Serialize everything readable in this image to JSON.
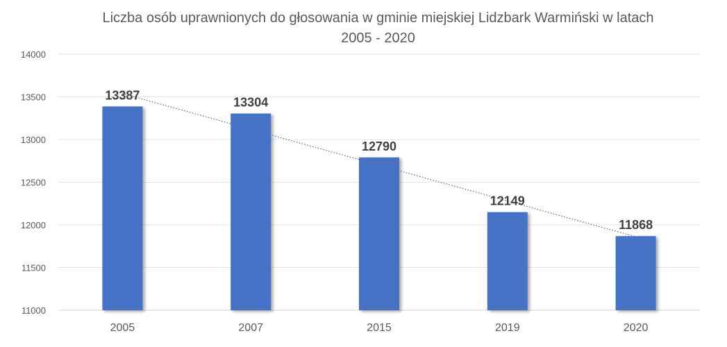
{
  "chart_data": {
    "type": "bar",
    "title": "Liczba osób uprawnionych do głosowania w gminie miejskiej Lidzbark Warmiński w latach",
    "subtitle": "2005 - 2020",
    "categories": [
      "2005",
      "2007",
      "2015",
      "2019",
      "2020"
    ],
    "series": [
      {
        "values": [
          13387,
          13304,
          12790,
          12149,
          11868
        ],
        "color": "#4472C4"
      }
    ],
    "ylim": [
      11000,
      14000
    ],
    "yticks": [
      11000,
      11500,
      12000,
      12500,
      13000,
      13500,
      14000
    ],
    "grid": true,
    "legend": "none",
    "trendline": {
      "type": "linear",
      "style": "dotted",
      "color": "#4472C4"
    },
    "data_labels": true
  }
}
